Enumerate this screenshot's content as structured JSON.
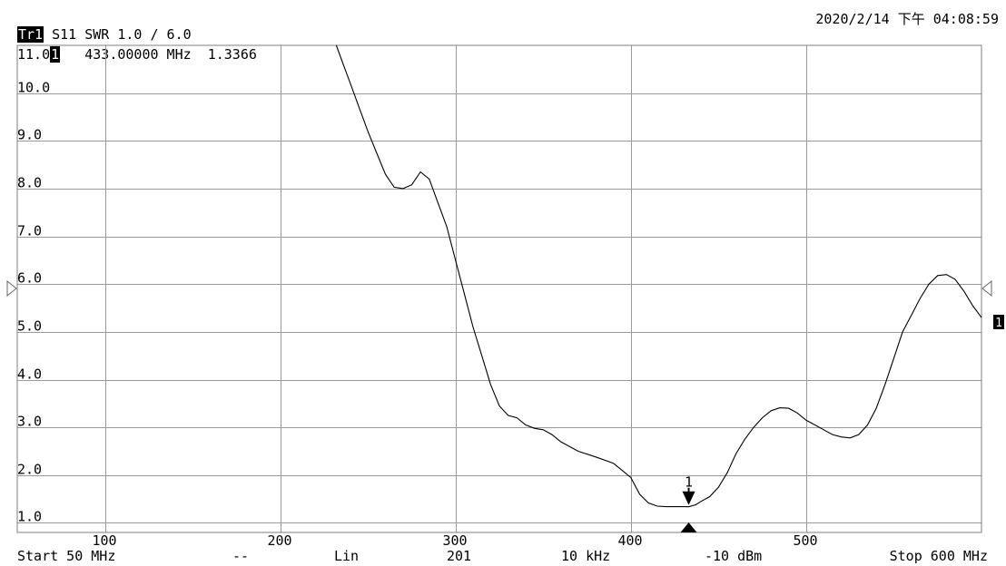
{
  "timestamp": "2020/2/14 下午 04:08:59",
  "trace": {
    "id": "Tr1",
    "parameter": "S11",
    "format": "SWR",
    "scale": "1.0 / 6.0",
    "top_value": "11.0",
    "active_marker": "1"
  },
  "marker_readout": {
    "frequency": "433.00000 MHz",
    "value": "1.3366"
  },
  "marker": {
    "label": "1",
    "x": 433,
    "y": 1.3366
  },
  "side_marker_label": "1",
  "status_bar": {
    "start": "Start 50 MHz",
    "dashes": "--",
    "sweep_type": "Lin",
    "points": "201",
    "ifbw": "10 kHz",
    "power": "-10 dBm",
    "stop": "Stop 600 MHz"
  },
  "chart_data": {
    "type": "line",
    "xlim": [
      50,
      600
    ],
    "ylim": [
      0.8,
      11.0
    ],
    "x_ticks": [
      100,
      200,
      300,
      400,
      500
    ],
    "x_tick_labels": [
      "100",
      "200",
      "300",
      "400",
      "500"
    ],
    "y_ticks": [
      1.0,
      2.0,
      3.0,
      4.0,
      5.0,
      6.0,
      7.0,
      8.0,
      9.0,
      10.0
    ],
    "y_tick_labels": [
      "1.0",
      "2.0",
      "3.0",
      "4.0",
      "5.0",
      "6.0",
      "7.0",
      "8.0",
      "9.0",
      "10.0"
    ],
    "grid": true,
    "series": [
      {
        "x": [
          232,
          236,
          240,
          245,
          250,
          255,
          260,
          265,
          270,
          275,
          280,
          285,
          290,
          295,
          300,
          305,
          310,
          315,
          320,
          325,
          330,
          335,
          340,
          345,
          350,
          355,
          360,
          370,
          380,
          390,
          395,
          400,
          405,
          410,
          415,
          420,
          425,
          430,
          433,
          437,
          440,
          445,
          450,
          455,
          460,
          465,
          470,
          475,
          480,
          485,
          490,
          495,
          500,
          505,
          510,
          515,
          520,
          525,
          530,
          535,
          540,
          545,
          550,
          555,
          560,
          565,
          570,
          575,
          580,
          585,
          590,
          595,
          600
        ],
        "values": [
          11.0,
          10.6,
          10.2,
          9.7,
          9.2,
          8.75,
          8.3,
          8.03,
          8.0,
          8.08,
          8.35,
          8.2,
          7.7,
          7.2,
          6.5,
          5.8,
          5.1,
          4.5,
          3.9,
          3.45,
          3.25,
          3.2,
          3.05,
          2.98,
          2.95,
          2.85,
          2.7,
          2.5,
          2.38,
          2.25,
          2.1,
          1.95,
          1.6,
          1.42,
          1.35,
          1.34,
          1.34,
          1.34,
          1.3366,
          1.38,
          1.45,
          1.55,
          1.75,
          2.05,
          2.45,
          2.75,
          3.0,
          3.2,
          3.35,
          3.41,
          3.4,
          3.3,
          3.15,
          3.05,
          2.95,
          2.85,
          2.8,
          2.78,
          2.85,
          3.05,
          3.4,
          3.9,
          4.45,
          5.0,
          5.35,
          5.7,
          6.0,
          6.18,
          6.2,
          6.1,
          5.85,
          5.55,
          5.3
        ]
      }
    ]
  }
}
